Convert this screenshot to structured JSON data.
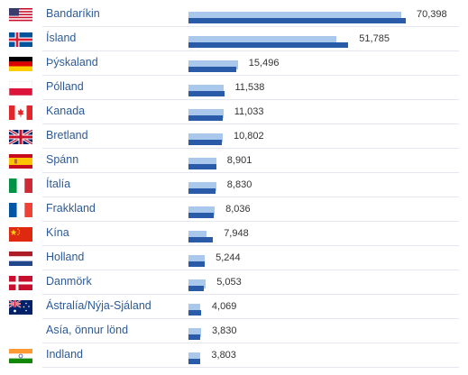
{
  "chart_data": {
    "type": "bar",
    "orientation": "horizontal",
    "series": [
      {
        "values": [
          70398,
          51785,
          15496,
          11538,
          11033,
          10802,
          8901,
          8830,
          8036,
          7948,
          5244,
          5053,
          4069,
          3830,
          3803
        ]
      },
      {
        "values": [
          69000,
          48000,
          16000,
          11500,
          11300,
          11100,
          9000,
          9000,
          8500,
          5800,
          5300,
          5600,
          3900,
          4100,
          3900
        ]
      }
    ],
    "categories": [
      "Bandaríkin",
      "Ísland",
      "Þýskaland",
      "Pólland",
      "Kanada",
      "Bretland",
      "Spánn",
      "Ítalía",
      "Frakkland",
      "Kína",
      "Holland",
      "Danmörk",
      "Ástralía/Nýja-Sjáland",
      "Asía, önnur lönd",
      "Indland"
    ],
    "value_labels": [
      "70,398",
      "51,785",
      "15,496",
      "11,538",
      "11,033",
      "10,802",
      "8,901",
      "8,830",
      "8,036",
      "7,948",
      "5,244",
      "5,053",
      "4,069",
      "3,830",
      "3,803"
    ],
    "flags": [
      "us",
      "is",
      "de",
      "pl",
      "ca",
      "gb",
      "es",
      "it",
      "fr",
      "cn",
      "nl",
      "dk",
      "au",
      "none",
      "in"
    ],
    "xlim": [
      0,
      70398
    ],
    "colors": {
      "current": "#2a5ba8",
      "previous": "#a9c8ec",
      "label": "#2d5a96",
      "value": "#333333"
    }
  }
}
